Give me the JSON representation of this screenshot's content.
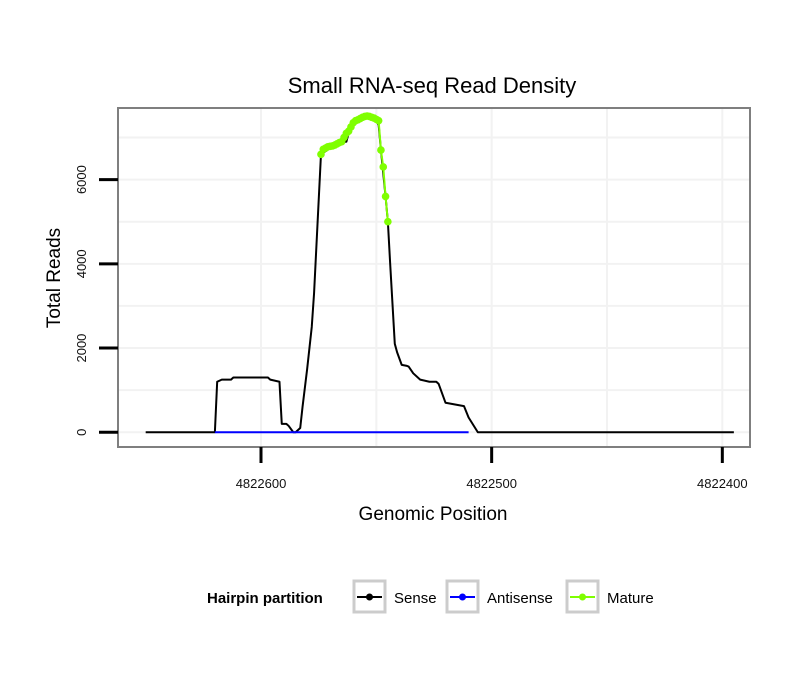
{
  "chart_data": {
    "type": "line",
    "title": "Small RNA-seq Read Density",
    "xlabel": "Genomic Position",
    "ylabel": "Total Reads",
    "xlim": [
      4822662,
      4822388
    ],
    "ylim": [
      -350,
      7700
    ],
    "x_ticks": [
      4822600,
      4822500,
      4822400
    ],
    "x_tick_labels": [
      "4822600",
      "4822500",
      "4822400"
    ],
    "y_ticks": [
      0,
      2000,
      4000,
      6000
    ],
    "y_tick_labels": [
      "0",
      "2000",
      "4000",
      "6000"
    ],
    "grid": true,
    "legend": {
      "title": "Hairpin partition",
      "position": "bottom",
      "entries": [
        {
          "label": "Sense",
          "color": "#000000"
        },
        {
          "label": "Antisense",
          "color": "#0000ff"
        },
        {
          "label": "Mature",
          "color": "#7fff00"
        }
      ]
    },
    "series": [
      {
        "name": "Sense",
        "color": "#000000",
        "x": [
          4822650,
          4822620,
          4822619,
          4822617,
          4822613,
          4822612,
          4822608,
          4822605,
          4822597,
          4822596,
          4822592,
          4822591,
          4822589,
          4822588,
          4822586,
          4822585,
          4822583,
          4822582,
          4822580,
          4822578,
          4822577,
          4822574,
          4822570,
          4822569,
          4822567,
          4822563,
          4822562,
          4822561,
          4822559,
          4822557,
          4822555,
          4822553,
          4822551,
          4822550,
          4822549,
          4822548,
          4822546,
          4822545,
          4822544,
          4822542,
          4822541,
          4822539,
          4822537,
          4822536,
          4822534,
          4822531,
          4822527,
          4822524,
          4822523,
          4822520,
          4822512,
          4822510,
          4822506,
          4822505,
          4822502,
          4822500,
          4822395
        ],
        "y": [
          0,
          0,
          1200,
          1250,
          1250,
          1300,
          1300,
          1300,
          1300,
          1250,
          1200,
          200,
          200,
          150,
          0,
          0,
          100,
          600,
          1500,
          2500,
          3300,
          6600,
          6750,
          6800,
          6850,
          6900,
          7100,
          7200,
          7350,
          7450,
          7500,
          7500,
          7450,
          7400,
          7300,
          6700,
          5600,
          5000,
          4000,
          2100,
          1900,
          1600,
          1580,
          1560,
          1400,
          1250,
          1200,
          1200,
          1150,
          700,
          620,
          350,
          0,
          0,
          0,
          0,
          0
        ]
      },
      {
        "name": "Antisense",
        "color": "#0000ff",
        "x": [
          4822620,
          4822510
        ],
        "y": [
          0,
          0
        ]
      },
      {
        "name": "Mature",
        "color": "#7fff00",
        "x": [
          4822574,
          4822573,
          4822572,
          4822571,
          4822570,
          4822569,
          4822568,
          4822567,
          4822566,
          4822565,
          4822564,
          4822563,
          4822562,
          4822561,
          4822560,
          4822559,
          4822558,
          4822557,
          4822556,
          4822555,
          4822554,
          4822553,
          4822552,
          4822551,
          4822550,
          4822549,
          4822548,
          4822547,
          4822546,
          4822545
        ],
        "y": [
          6600,
          6720,
          6750,
          6780,
          6790,
          6800,
          6820,
          6850,
          6880,
          6900,
          7000,
          7100,
          7150,
          7250,
          7350,
          7400,
          7420,
          7450,
          7480,
          7500,
          7510,
          7500,
          7480,
          7460,
          7430,
          7400,
          6700,
          6300,
          5600,
          5000
        ]
      }
    ]
  }
}
